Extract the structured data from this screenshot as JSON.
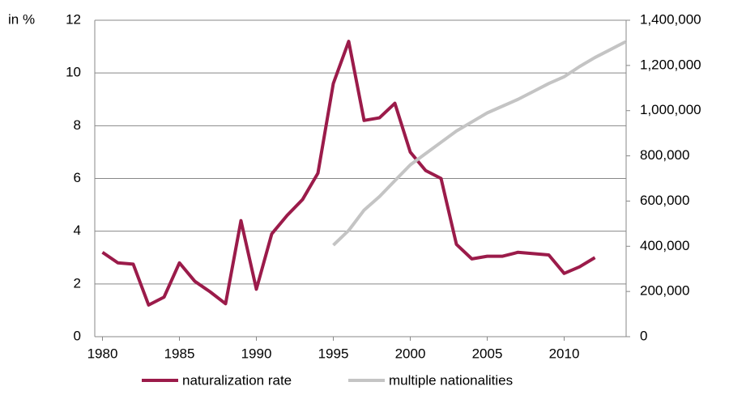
{
  "chart_data": {
    "type": "line",
    "ylabel": "in %",
    "x": [
      1980,
      1981,
      1982,
      1983,
      1984,
      1985,
      1986,
      1987,
      1988,
      1989,
      1990,
      1991,
      1992,
      1993,
      1994,
      1995,
      1996,
      1997,
      1998,
      1999,
      2000,
      2001,
      2002,
      2003,
      2004,
      2005,
      2006,
      2007,
      2008,
      2009,
      2010,
      2011,
      2012,
      2013,
      2014
    ],
    "xlim": [
      1979.5,
      2014.5
    ],
    "xticks": [
      1980,
      1985,
      1990,
      1995,
      2000,
      2005,
      2010
    ],
    "ylim": [
      0,
      12
    ],
    "yticks": [
      0,
      2,
      4,
      6,
      8,
      10,
      12
    ],
    "y2lim": [
      0,
      1400000
    ],
    "y2ticks": [
      0,
      {
        "value": 200000,
        "label": "200,000"
      },
      {
        "value": 400000,
        "label": "400,000"
      },
      {
        "value": 600000,
        "label": "600,000"
      },
      {
        "value": 800000,
        "label": "800,000"
      },
      {
        "value": 1000000,
        "label": "1,000,000"
      },
      {
        "value": 1200000,
        "label": "1,200,000"
      },
      {
        "value": 1400000,
        "label": "1,400,000"
      }
    ],
    "grid": true,
    "legend": "bottom",
    "series": [
      {
        "name": "naturalization rate",
        "color": "#9b1b4a",
        "values": [
          3.2,
          2.8,
          2.75,
          1.2,
          1.5,
          2.8,
          2.1,
          1.7,
          1.25,
          4.4,
          1.8,
          3.9,
          4.6,
          5.2,
          6.2,
          9.6,
          11.2,
          8.2,
          8.3,
          8.85,
          7.0,
          6.3,
          6.0,
          3.5,
          2.95,
          3.05,
          3.05,
          3.2,
          3.15,
          3.1,
          2.4,
          2.65,
          3.0,
          null,
          null
        ]
      },
      {
        "name": "multiple nationalities",
        "color": "#c4c4c4",
        "axis": "y2",
        "values": [
          null,
          null,
          null,
          null,
          null,
          null,
          null,
          null,
          null,
          null,
          null,
          null,
          null,
          null,
          null,
          405000,
          470000,
          560000,
          620000,
          690000,
          760000,
          810000,
          860000,
          910000,
          950000,
          990000,
          1020000,
          1050000,
          1085000,
          1120000,
          1150000,
          1195000,
          1235000,
          1270000,
          1305000
        ]
      }
    ]
  }
}
